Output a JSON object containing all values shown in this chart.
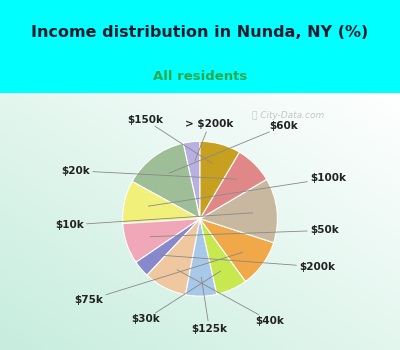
{
  "title": "Income distribution in Nunda, NY (%)",
  "subtitle": "All residents",
  "title_color": "#1a1a2e",
  "subtitle_color": "#2da84e",
  "background_top": "#00ffff",
  "watermark": "City-Data.com",
  "labels": [
    "> $200k",
    "$60k",
    "$100k",
    "$50k",
    "$200k",
    "$40k",
    "$125k",
    "$30k",
    "$75k",
    "$10k",
    "$20k",
    "$150k"
  ],
  "values": [
    3.5,
    13.5,
    9.0,
    8.5,
    3.5,
    9.0,
    6.5,
    6.5,
    10.0,
    13.5,
    8.0,
    8.5
  ],
  "colors": [
    "#b8b0e0",
    "#9ebe98",
    "#f0f07a",
    "#f0a8b8",
    "#8888cc",
    "#f0c8a0",
    "#a8c8e8",
    "#c8e850",
    "#f0a848",
    "#c8b8a0",
    "#e08888",
    "#c8a020"
  ],
  "startangle": 90,
  "label_fontsize": 7.5
}
